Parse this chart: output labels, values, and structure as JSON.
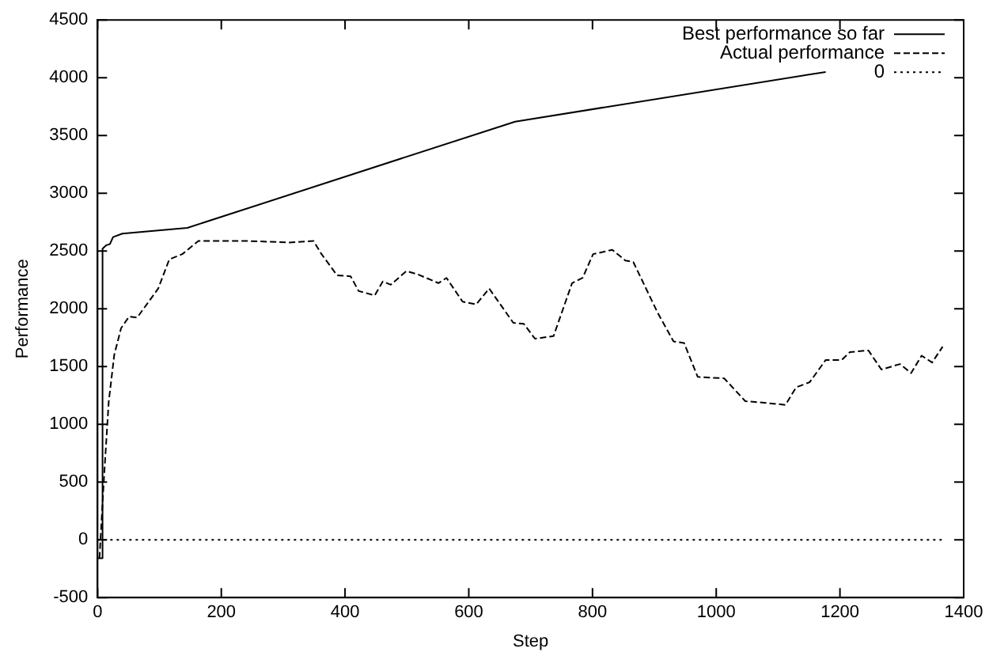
{
  "chart_data": {
    "type": "line",
    "xlabel": "Step",
    "ylabel": "Performance",
    "xlim": [
      0,
      1400
    ],
    "xticks": [
      0,
      200,
      400,
      600,
      800,
      1000,
      1200,
      1400
    ],
    "ylim": [
      -500,
      4500
    ],
    "yticks": [
      -500,
      0,
      500,
      1000,
      1500,
      2000,
      2500,
      3000,
      3500,
      4000,
      4500
    ],
    "grid": false,
    "legend": "top right",
    "marker": "none",
    "series": [
      {
        "name": "Best performance so far",
        "color": "#000000",
        "line_style": "solid",
        "x": [
          0,
          7,
          8,
          14,
          20,
          25,
          40,
          145,
          675,
          1177
        ],
        "values": [
          -160,
          -160,
          2520,
          2550,
          2560,
          2620,
          2650,
          2700,
          3620,
          4050
        ]
      },
      {
        "name": "Actual performance",
        "color": "#000000",
        "line_style": "dashed",
        "x": [
          3,
          10,
          18,
          27,
          38,
          51,
          64,
          98,
          116,
          137,
          163,
          241,
          310,
          349,
          362,
          387,
          409,
          422,
          448,
          461,
          474,
          499,
          517,
          551,
          564,
          590,
          612,
          633,
          672,
          689,
          707,
          737,
          767,
          784,
          801,
          832,
          853,
          866,
          905,
          931,
          948,
          970,
          1013,
          1047,
          1086,
          1112,
          1129,
          1151,
          1177,
          1203,
          1216,
          1246,
          1267,
          1297,
          1315,
          1332,
          1349,
          1366
        ],
        "values": [
          -160,
          504,
          1195,
          1603,
          1832,
          1933,
          1924,
          2175,
          2428,
          2473,
          2587,
          2587,
          2574,
          2587,
          2473,
          2290,
          2281,
          2153,
          2116,
          2236,
          2208,
          2326,
          2299,
          2222,
          2267,
          2061,
          2038,
          2175,
          1878,
          1869,
          1741,
          1763,
          2222,
          2267,
          2473,
          2510,
          2418,
          2404,
          1969,
          1717,
          1704,
          1411,
          1397,
          1200,
          1182,
          1168,
          1319,
          1364,
          1557,
          1557,
          1625,
          1639,
          1474,
          1521,
          1443,
          1594,
          1535,
          1672
        ]
      },
      {
        "name": "0",
        "color": "#000000",
        "line_style": "dotted",
        "x": [
          0,
          1365
        ],
        "values": [
          0,
          0
        ]
      }
    ]
  }
}
